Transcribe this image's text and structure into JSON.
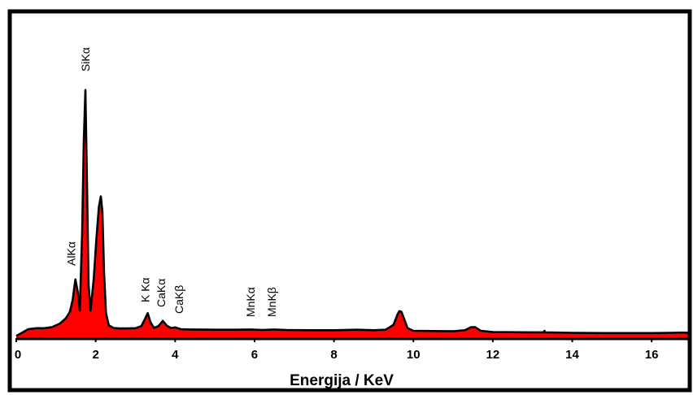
{
  "chart_data": {
    "type": "area",
    "title": "",
    "xlabel": "Energija / KeV",
    "ylabel": "",
    "xlim": [
      0,
      17
    ],
    "ylim": [
      0,
      100
    ],
    "x_ticks": [
      "0",
      "2",
      "4",
      "6",
      "8",
      "10",
      "12",
      "14",
      "16"
    ],
    "grid": false,
    "legend": "none",
    "colors": {
      "fill": "#ff0000",
      "line": "#000000",
      "frame": "#000000",
      "background": "#ffffff"
    },
    "peak_labels": [
      {
        "text": "SiKα",
        "x": 1.74
      },
      {
        "text": "AlKα",
        "x": 1.49
      },
      {
        "text": "K Kα",
        "x": 3.31
      },
      {
        "text": "CaKα",
        "x": 3.69
      },
      {
        "text": "CaKβ",
        "x": 4.01
      },
      {
        "text": "MnKα",
        "x": 5.9
      },
      {
        "text": "MnKβ",
        "x": 6.49
      }
    ],
    "series": [
      {
        "x": [
          0.0,
          0.15,
          0.3,
          0.5,
          0.7,
          0.9,
          1.1,
          1.25,
          1.35,
          1.42,
          1.49,
          1.55,
          1.6,
          1.66,
          1.7,
          1.74,
          1.78,
          1.82,
          1.87,
          1.95,
          2.02,
          2.08,
          2.13,
          2.17,
          2.21,
          2.26,
          2.33,
          2.45,
          2.6,
          2.8,
          3.0,
          3.15,
          3.25,
          3.31,
          3.38,
          3.47,
          3.58,
          3.69,
          3.79,
          3.9,
          4.01,
          4.15,
          4.4,
          5.0,
          5.5,
          5.9,
          6.2,
          6.49,
          6.8,
          7.5,
          8.0,
          8.6,
          9.0,
          9.3,
          9.5,
          9.6,
          9.65,
          9.7,
          9.75,
          9.85,
          10.0,
          10.5,
          11.0,
          11.3,
          11.45,
          11.55,
          11.7,
          12.0,
          13.0,
          13.28,
          13.3,
          13.32,
          14.0,
          14.8,
          15.5,
          16.0,
          16.5,
          16.8,
          17.0
        ],
        "y": [
          0.2,
          1.5,
          2.8,
          3.2,
          3.2,
          3.6,
          5.0,
          7.0,
          9.5,
          14.0,
          22.0,
          17.0,
          10.0,
          40.0,
          75.0,
          95.0,
          60.0,
          20.0,
          10.0,
          22.0,
          38.0,
          50.0,
          54.0,
          48.0,
          25.0,
          9.0,
          4.3,
          3.3,
          3.1,
          3.1,
          3.2,
          4.0,
          7.0,
          9.0,
          5.5,
          3.3,
          4.0,
          6.0,
          4.2,
          3.2,
          3.5,
          2.8,
          2.7,
          2.6,
          2.6,
          2.7,
          2.5,
          2.7,
          2.5,
          2.4,
          2.4,
          2.6,
          2.4,
          2.6,
          4.5,
          8.5,
          9.8,
          9.5,
          7.5,
          3.3,
          2.2,
          2.1,
          2.0,
          2.4,
          3.6,
          3.6,
          2.2,
          1.7,
          1.6,
          1.6,
          2.2,
          1.6,
          1.4,
          1.3,
          1.3,
          1.3,
          1.4,
          1.5,
          1.3
        ]
      }
    ]
  }
}
